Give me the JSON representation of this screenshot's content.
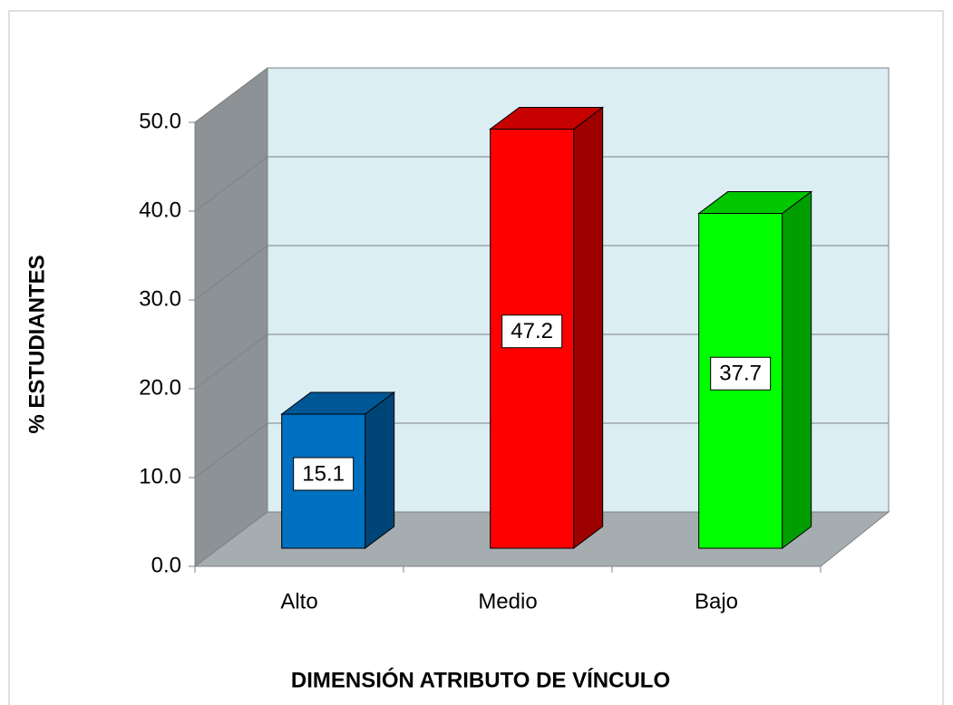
{
  "chart_data": {
    "type": "bar3d",
    "categories": [
      "Alto",
      "Medio",
      "Bajo"
    ],
    "values": [
      15.1,
      47.2,
      37.7
    ],
    "colors": [
      "#0070c0",
      "#ff0000",
      "#00ff00"
    ],
    "ylim": [
      0,
      50
    ],
    "yticks": [
      {
        "value": 0,
        "label": "0.0"
      },
      {
        "value": 10,
        "label": "10.0"
      },
      {
        "value": 20,
        "label": "20.0"
      },
      {
        "value": 30,
        "label": "30.0"
      },
      {
        "value": 40,
        "label": "40.0"
      },
      {
        "value": 50,
        "label": "50.0"
      }
    ],
    "ylabel": "% ESTUDIANTES",
    "xlabel": "DIMENSIÓN ATRIBUTO DE VÍNCULO",
    "grid": true
  }
}
